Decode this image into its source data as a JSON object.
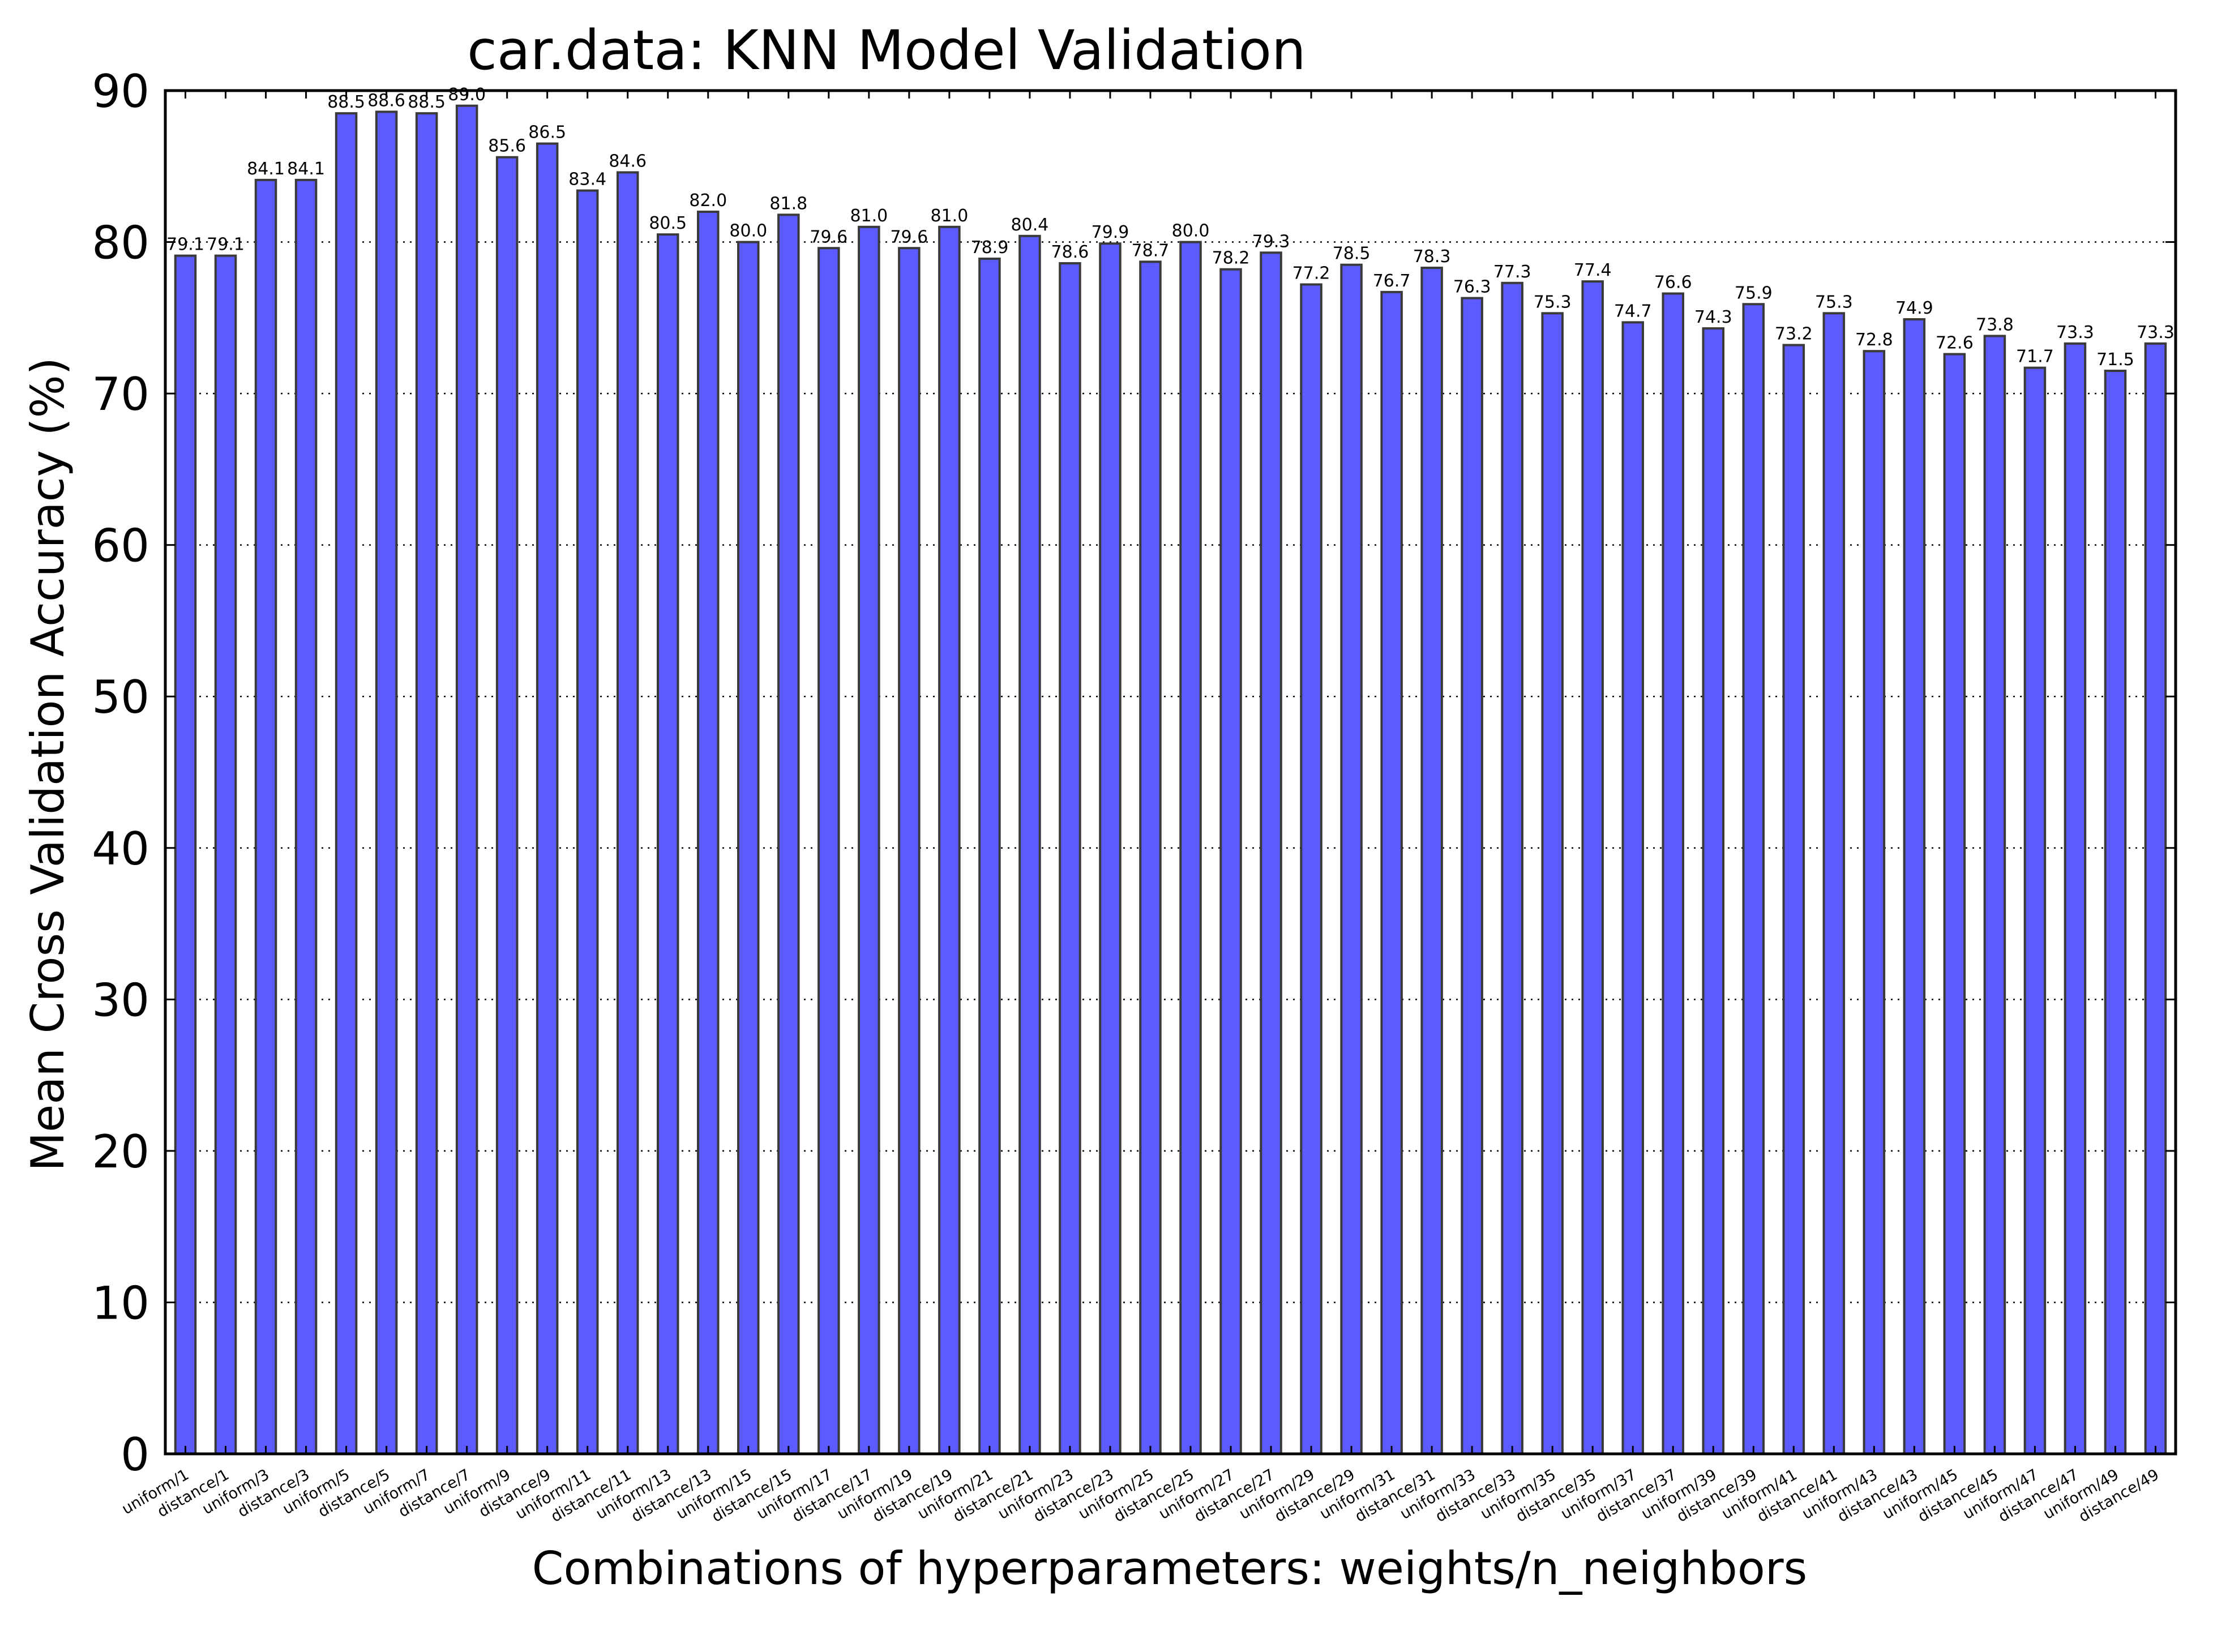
{
  "chart_data": {
    "type": "bar",
    "title": "car.data: KNN Model Validation",
    "xlabel": "Combinations of hyperparameters: weights/n_neighbors",
    "ylabel": "Mean Cross Validation Accuracy (%)",
    "ylim": [
      0,
      90
    ],
    "yticks": [
      0,
      10,
      20,
      30,
      40,
      50,
      60,
      70,
      80,
      90
    ],
    "grid": "horizontal dotted",
    "bar_color": "#5b5bff",
    "categories": [
      "uniform/1",
      "distance/1",
      "uniform/3",
      "distance/3",
      "uniform/5",
      "distance/5",
      "uniform/7",
      "distance/7",
      "uniform/9",
      "distance/9",
      "uniform/11",
      "distance/11",
      "uniform/13",
      "distance/13",
      "uniform/15",
      "distance/15",
      "uniform/17",
      "distance/17",
      "uniform/19",
      "distance/19",
      "uniform/21",
      "distance/21",
      "uniform/23",
      "distance/23",
      "uniform/25",
      "distance/25",
      "uniform/27",
      "distance/27",
      "uniform/29",
      "distance/29",
      "uniform/31",
      "distance/31",
      "uniform/33",
      "distance/33",
      "uniform/35",
      "distance/35",
      "uniform/37",
      "distance/37",
      "uniform/39",
      "distance/39",
      "uniform/41",
      "distance/41",
      "uniform/43",
      "distance/43",
      "uniform/45",
      "distance/45",
      "uniform/47",
      "distance/47",
      "uniform/49",
      "distance/49"
    ],
    "values": [
      79.1,
      79.1,
      84.1,
      84.1,
      88.5,
      88.6,
      88.5,
      89.0,
      85.6,
      86.5,
      83.4,
      84.6,
      80.5,
      82.0,
      80.0,
      81.8,
      79.6,
      81.0,
      79.6,
      81.0,
      78.9,
      80.4,
      78.6,
      79.9,
      78.7,
      80.0,
      78.2,
      79.3,
      77.2,
      78.5,
      76.7,
      78.3,
      76.3,
      77.3,
      75.3,
      77.4,
      74.7,
      76.6,
      74.3,
      75.9,
      73.2,
      75.3,
      72.8,
      74.9,
      72.6,
      73.8,
      71.7,
      73.3,
      71.5,
      73.3
    ]
  }
}
